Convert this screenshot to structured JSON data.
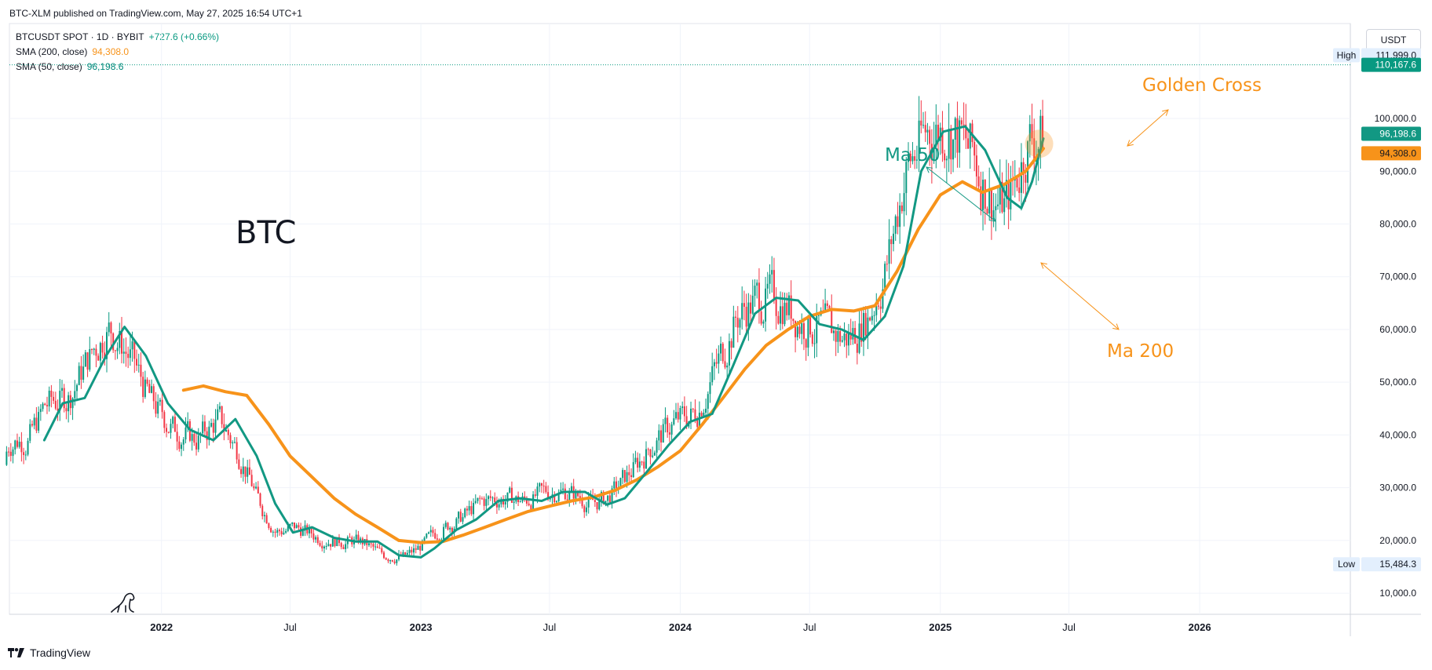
{
  "header": {
    "published": "BTC-XLM published on TradingView.com, May 27, 2025 16:54 UTC+1"
  },
  "legend": {
    "symbol": "BTCUSDT SPOT · 1D · BYBIT",
    "change": "+727.6 (+0.66%)",
    "sma200_label": "SMA (200, close)",
    "sma200_value": "94,308.0",
    "sma50_label": "SMA (50, close)",
    "sma50_value": "96,198.6"
  },
  "currency_button": "USDT",
  "footer": {
    "brand": "TradingView"
  },
  "chart_data": {
    "type": "line",
    "title": "BTC",
    "xaxis": {
      "tick_labels": [
        "2022",
        "Jul",
        "2023",
        "Jul",
        "2024",
        "Jul",
        "2025",
        "Jul",
        "2026"
      ]
    },
    "yaxis": {
      "range": [
        6000,
        118000
      ],
      "tick_values": [
        10000,
        20000,
        30000,
        40000,
        50000,
        60000,
        70000,
        80000,
        90000,
        100000
      ],
      "tick_labels": [
        "10,000.0",
        "20,000.0",
        "30,000.0",
        "40,000.0",
        "50,000.0",
        "60,000.0",
        "70,000.0",
        "80,000.0",
        "90,000.0",
        "100,000.0"
      ]
    },
    "markers": {
      "high": {
        "label": "High",
        "value": 111999.0,
        "text": "111,999.0"
      },
      "low": {
        "label": "Low",
        "value": 15484.3,
        "text": "15,484.3"
      },
      "last": {
        "value": 110167.6,
        "text": "110,167.6"
      },
      "sma50_last": {
        "value": 96198.6,
        "text": "96,198.6"
      },
      "sma200_last": {
        "value": 94308.0,
        "text": "94,308.0"
      }
    },
    "annotations": {
      "golden_cross": "Golden Cross",
      "ma50": "Ma 50",
      "ma200": "Ma 200"
    },
    "colors": {
      "sma50": "#129883",
      "sma200": "#f7931a",
      "up": "#089981",
      "down": "#f23645",
      "accent_orange": "#f7931a"
    },
    "series": [
      {
        "name": "SMA (50, close)",
        "x": [
          "2021-07-20",
          "2021-08-15",
          "2021-09-15",
          "2021-10-15",
          "2021-11-10",
          "2021-12-10",
          "2022-01-10",
          "2022-02-10",
          "2022-03-15",
          "2022-04-15",
          "2022-05-15",
          "2022-06-10",
          "2022-07-05",
          "2022-08-01",
          "2022-09-01",
          "2022-10-01",
          "2022-11-01",
          "2022-12-01",
          "2023-01-01",
          "2023-01-20",
          "2023-02-20",
          "2023-03-20",
          "2023-04-20",
          "2023-05-20",
          "2023-06-20",
          "2023-07-20",
          "2023-08-20",
          "2023-09-20",
          "2023-10-15",
          "2023-11-15",
          "2023-12-15",
          "2024-01-15",
          "2024-02-15",
          "2024-03-15",
          "2024-04-15",
          "2024-05-15",
          "2024-06-15",
          "2024-07-15",
          "2024-08-15",
          "2024-09-15",
          "2024-10-15",
          "2024-11-10",
          "2024-12-05",
          "2025-01-05",
          "2025-02-05",
          "2025-03-05",
          "2025-04-05",
          "2025-04-25",
          "2025-05-10",
          "2025-05-26"
        ],
        "values": [
          39000,
          46000,
          47000,
          55000,
          60500,
          55000,
          46000,
          41000,
          39000,
          43000,
          36000,
          27000,
          21500,
          22500,
          20500,
          19800,
          19800,
          17200,
          16800,
          18500,
          22000,
          24000,
          27500,
          28000,
          27500,
          29200,
          29200,
          26800,
          28000,
          33000,
          38000,
          42500,
          44000,
          53000,
          63000,
          66000,
          65500,
          61000,
          60000,
          58000,
          62500,
          72000,
          90000,
          97500,
          98500,
          94000,
          85000,
          83000,
          88000,
          96198.6
        ]
      },
      {
        "name": "SMA (200, close)",
        "x": [
          "2022-02-01",
          "2022-03-01",
          "2022-04-01",
          "2022-05-01",
          "2022-06-01",
          "2022-07-01",
          "2022-08-01",
          "2022-09-01",
          "2022-10-01",
          "2022-11-01",
          "2022-12-01",
          "2023-01-01",
          "2023-02-01",
          "2023-03-01",
          "2023-04-01",
          "2023-05-01",
          "2023-06-01",
          "2023-07-01",
          "2023-08-01",
          "2023-09-01",
          "2023-10-01",
          "2023-11-01",
          "2023-12-01",
          "2024-01-01",
          "2024-02-01",
          "2024-03-01",
          "2024-04-01",
          "2024-05-01",
          "2024-06-01",
          "2024-07-01",
          "2024-08-01",
          "2024-09-01",
          "2024-10-01",
          "2024-11-01",
          "2024-12-01",
          "2025-01-01",
          "2025-02-01",
          "2025-03-01",
          "2025-04-01",
          "2025-05-01",
          "2025-05-26"
        ],
        "values": [
          48500,
          49300,
          48200,
          47500,
          42000,
          36000,
          32000,
          28000,
          25000,
          22500,
          20000,
          19600,
          19800,
          21000,
          22500,
          24000,
          25500,
          26500,
          27500,
          28200,
          29500,
          31500,
          34000,
          37000,
          42000,
          47000,
          52500,
          57000,
          60000,
          62500,
          63800,
          63500,
          64500,
          71000,
          79000,
          85500,
          88000,
          86000,
          87500,
          90000,
          94308.0
        ]
      }
    ]
  }
}
